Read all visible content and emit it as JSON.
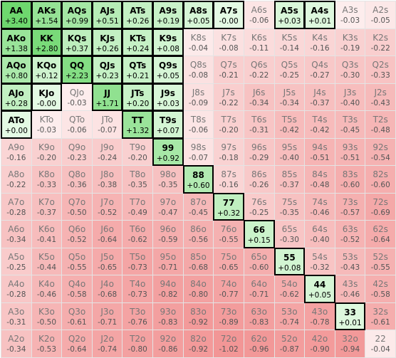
{
  "rows": [
    [
      {
        "hand": "AA",
        "ev": "+3.40"
      },
      {
        "hand": "AKs",
        "ev": "+1.54"
      },
      {
        "hand": "AQs",
        "ev": "+0.99"
      },
      {
        "hand": "AJs",
        "ev": "+0.51"
      },
      {
        "hand": "ATs",
        "ev": "+0.26"
      },
      {
        "hand": "A9s",
        "ev": "+0.19"
      },
      {
        "hand": "A8s",
        "ev": "+0.05"
      },
      {
        "hand": "A7s",
        "ev": "-0.00"
      },
      {
        "hand": "A6s",
        "ev": "-0.06"
      },
      {
        "hand": "A5s",
        "ev": "+0.03"
      },
      {
        "hand": "A4s",
        "ev": "+0.01"
      },
      {
        "hand": "A3s",
        "ev": "-0.03"
      },
      {
        "hand": "A2s",
        "ev": "-0.05"
      }
    ],
    [
      {
        "hand": "AKo",
        "ev": "+1.38"
      },
      {
        "hand": "KK",
        "ev": "+2.80"
      },
      {
        "hand": "KQs",
        "ev": "+0.37"
      },
      {
        "hand": "KJs",
        "ev": "+0.26"
      },
      {
        "hand": "KTs",
        "ev": "+0.24"
      },
      {
        "hand": "K9s",
        "ev": "+0.08"
      },
      {
        "hand": "K8s",
        "ev": "-0.04"
      },
      {
        "hand": "K7s",
        "ev": "-0.08"
      },
      {
        "hand": "K6s",
        "ev": "-0.11"
      },
      {
        "hand": "K5s",
        "ev": "-0.14"
      },
      {
        "hand": "K4s",
        "ev": "-0.16"
      },
      {
        "hand": "K3s",
        "ev": "-0.19"
      },
      {
        "hand": "K2s",
        "ev": "-0.22"
      }
    ],
    [
      {
        "hand": "AQo",
        "ev": "+0.80"
      },
      {
        "hand": "KQo",
        "ev": "+0.12"
      },
      {
        "hand": "QQ",
        "ev": "+2.23"
      },
      {
        "hand": "QJs",
        "ev": "+0.23"
      },
      {
        "hand": "QTs",
        "ev": "+0.21"
      },
      {
        "hand": "Q9s",
        "ev": "+0.05"
      },
      {
        "hand": "Q8s",
        "ev": "-0.08"
      },
      {
        "hand": "Q7s",
        "ev": "-0.21"
      },
      {
        "hand": "Q6s",
        "ev": "-0.22"
      },
      {
        "hand": "Q5s",
        "ev": "-0.25"
      },
      {
        "hand": "Q4s",
        "ev": "-0.27"
      },
      {
        "hand": "Q3s",
        "ev": "-0.30"
      },
      {
        "hand": "Q2s",
        "ev": "-0.33"
      }
    ],
    [
      {
        "hand": "AJo",
        "ev": "+0.28"
      },
      {
        "hand": "KJo",
        "ev": "-0.00"
      },
      {
        "hand": "QJo",
        "ev": "-0.03"
      },
      {
        "hand": "JJ",
        "ev": "+1.71"
      },
      {
        "hand": "JTs",
        "ev": "+0.20"
      },
      {
        "hand": "J9s",
        "ev": "+0.03"
      },
      {
        "hand": "J8s",
        "ev": "-0.09"
      },
      {
        "hand": "J7s",
        "ev": "-0.22"
      },
      {
        "hand": "J6s",
        "ev": "-0.34"
      },
      {
        "hand": "J5s",
        "ev": "-0.34"
      },
      {
        "hand": "J4s",
        "ev": "-0.37"
      },
      {
        "hand": "J3s",
        "ev": "-0.40"
      },
      {
        "hand": "J2s",
        "ev": "-0.43"
      }
    ],
    [
      {
        "hand": "ATo",
        "ev": "+0.00"
      },
      {
        "hand": "KTo",
        "ev": "-0.03"
      },
      {
        "hand": "QTo",
        "ev": "-0.06"
      },
      {
        "hand": "JTo",
        "ev": "-0.07"
      },
      {
        "hand": "TT",
        "ev": "+1.32"
      },
      {
        "hand": "T9s",
        "ev": "+0.07"
      },
      {
        "hand": "T8s",
        "ev": "-0.06"
      },
      {
        "hand": "T7s",
        "ev": "-0.20"
      },
      {
        "hand": "T6s",
        "ev": "-0.31"
      },
      {
        "hand": "T5s",
        "ev": "-0.42"
      },
      {
        "hand": "T4s",
        "ev": "-0.42"
      },
      {
        "hand": "T3s",
        "ev": "-0.45"
      },
      {
        "hand": "T2s",
        "ev": "-0.48"
      }
    ],
    [
      {
        "hand": "A9o",
        "ev": "-0.16"
      },
      {
        "hand": "K9o",
        "ev": "-0.20"
      },
      {
        "hand": "Q9o",
        "ev": "-0.23"
      },
      {
        "hand": "J9o",
        "ev": "-0.24"
      },
      {
        "hand": "T9o",
        "ev": "-0.20"
      },
      {
        "hand": "99",
        "ev": "+0.92"
      },
      {
        "hand": "98s",
        "ev": "-0.07"
      },
      {
        "hand": "97s",
        "ev": "-0.18"
      },
      {
        "hand": "96s",
        "ev": "-0.29"
      },
      {
        "hand": "95s",
        "ev": "-0.40"
      },
      {
        "hand": "94s",
        "ev": "-0.51"
      },
      {
        "hand": "93s",
        "ev": "-0.51"
      },
      {
        "hand": "92s",
        "ev": "-0.54"
      }
    ],
    [
      {
        "hand": "A8o",
        "ev": "-0.22"
      },
      {
        "hand": "K8o",
        "ev": "-0.33"
      },
      {
        "hand": "Q8o",
        "ev": "-0.36"
      },
      {
        "hand": "J8o",
        "ev": "-0.38"
      },
      {
        "hand": "T8o",
        "ev": "-0.35"
      },
      {
        "hand": "98o",
        "ev": "-0.35"
      },
      {
        "hand": "88",
        "ev": "+0.60"
      },
      {
        "hand": "87s",
        "ev": "-0.16"
      },
      {
        "hand": "86s",
        "ev": "-0.26"
      },
      {
        "hand": "85s",
        "ev": "-0.37"
      },
      {
        "hand": "84s",
        "ev": "-0.48"
      },
      {
        "hand": "83s",
        "ev": "-0.60"
      },
      {
        "hand": "82s",
        "ev": "-0.60"
      }
    ],
    [
      {
        "hand": "A7o",
        "ev": "-0.28"
      },
      {
        "hand": "K7o",
        "ev": "-0.37"
      },
      {
        "hand": "Q7o",
        "ev": "-0.50"
      },
      {
        "hand": "J7o",
        "ev": "-0.52"
      },
      {
        "hand": "T7o",
        "ev": "-0.49"
      },
      {
        "hand": "97o",
        "ev": "-0.47"
      },
      {
        "hand": "87o",
        "ev": "-0.45"
      },
      {
        "hand": "77",
        "ev": "+0.32"
      },
      {
        "hand": "76s",
        "ev": "-0.25"
      },
      {
        "hand": "75s",
        "ev": "-0.35"
      },
      {
        "hand": "74s",
        "ev": "-0.46"
      },
      {
        "hand": "73s",
        "ev": "-0.57"
      },
      {
        "hand": "72s",
        "ev": "-0.69"
      }
    ],
    [
      {
        "hand": "A6o",
        "ev": "-0.34"
      },
      {
        "hand": "K6o",
        "ev": "-0.41"
      },
      {
        "hand": "Q6o",
        "ev": "-0.52"
      },
      {
        "hand": "J6o",
        "ev": "-0.64"
      },
      {
        "hand": "T6o",
        "ev": "-0.62"
      },
      {
        "hand": "96o",
        "ev": "-0.59"
      },
      {
        "hand": "86o",
        "ev": "-0.56"
      },
      {
        "hand": "76o",
        "ev": "-0.55"
      },
      {
        "hand": "66",
        "ev": "+0.15"
      },
      {
        "hand": "65s",
        "ev": "-0.30"
      },
      {
        "hand": "64s",
        "ev": "-0.40"
      },
      {
        "hand": "63s",
        "ev": "-0.52"
      },
      {
        "hand": "62s",
        "ev": "-0.64"
      }
    ],
    [
      {
        "hand": "A5o",
        "ev": "-0.25"
      },
      {
        "hand": "K5o",
        "ev": "-0.44"
      },
      {
        "hand": "Q5o",
        "ev": "-0.55"
      },
      {
        "hand": "J5o",
        "ev": "-0.65"
      },
      {
        "hand": "T5o",
        "ev": "-0.73"
      },
      {
        "hand": "95o",
        "ev": "-0.71"
      },
      {
        "hand": "85o",
        "ev": "-0.68"
      },
      {
        "hand": "75o",
        "ev": "-0.65"
      },
      {
        "hand": "65o",
        "ev": "-0.60"
      },
      {
        "hand": "55",
        "ev": "+0.08"
      },
      {
        "hand": "54s",
        "ev": "-0.32"
      },
      {
        "hand": "53s",
        "ev": "-0.43"
      },
      {
        "hand": "52s",
        "ev": "-0.55"
      }
    ],
    [
      {
        "hand": "A4o",
        "ev": "-0.28"
      },
      {
        "hand": "K4o",
        "ev": "-0.46"
      },
      {
        "hand": "Q4o",
        "ev": "-0.58"
      },
      {
        "hand": "J4o",
        "ev": "-0.68"
      },
      {
        "hand": "T4o",
        "ev": "-0.73"
      },
      {
        "hand": "94o",
        "ev": "-0.82"
      },
      {
        "hand": "84o",
        "ev": "-0.80"
      },
      {
        "hand": "74o",
        "ev": "-0.77"
      },
      {
        "hand": "64o",
        "ev": "-0.71"
      },
      {
        "hand": "54o",
        "ev": "-0.62"
      },
      {
        "hand": "44",
        "ev": "+0.05"
      },
      {
        "hand": "43s",
        "ev": "-0.46"
      },
      {
        "hand": "42s",
        "ev": "-0.58"
      }
    ],
    [
      {
        "hand": "A3o",
        "ev": "-0.31"
      },
      {
        "hand": "K3o",
        "ev": "-0.50"
      },
      {
        "hand": "Q3o",
        "ev": "-0.61"
      },
      {
        "hand": "J3o",
        "ev": "-0.71"
      },
      {
        "hand": "T3o",
        "ev": "-0.76"
      },
      {
        "hand": "93o",
        "ev": "-0.83"
      },
      {
        "hand": "83o",
        "ev": "-0.92"
      },
      {
        "hand": "73o",
        "ev": "-0.89"
      },
      {
        "hand": "63o",
        "ev": "-0.83"
      },
      {
        "hand": "53o",
        "ev": "-0.74"
      },
      {
        "hand": "43o",
        "ev": "-0.78"
      },
      {
        "hand": "33",
        "ev": "+0.01"
      },
      {
        "hand": "32s",
        "ev": "-0.61"
      }
    ],
    [
      {
        "hand": "A2o",
        "ev": "-0.34"
      },
      {
        "hand": "K2o",
        "ev": "-0.53"
      },
      {
        "hand": "Q2o",
        "ev": "-0.64"
      },
      {
        "hand": "J2o",
        "ev": "-0.74"
      },
      {
        "hand": "T2o",
        "ev": "-0.80"
      },
      {
        "hand": "92o",
        "ev": "-0.86"
      },
      {
        "hand": "82o",
        "ev": "-0.92"
      },
      {
        "hand": "72o",
        "ev": "-1.02"
      },
      {
        "hand": "62o",
        "ev": "-0.96"
      },
      {
        "hand": "52o",
        "ev": "-0.87"
      },
      {
        "hand": "42o",
        "ev": "-0.90"
      },
      {
        "hand": "32o",
        "ev": "-0.94"
      },
      {
        "hand": "22",
        "ev": "-0.04"
      }
    ]
  ]
}
